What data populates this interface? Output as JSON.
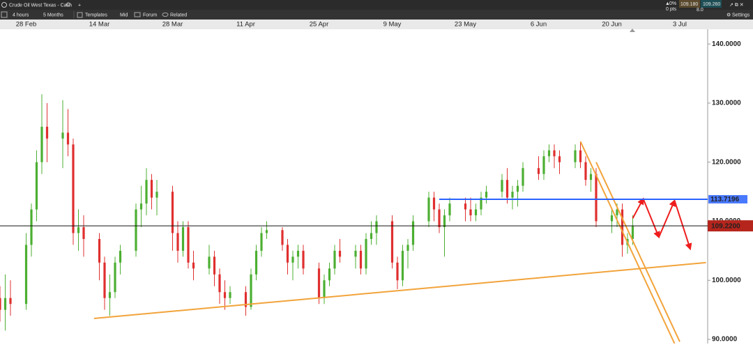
{
  "toolbar": {
    "instrument": "Crude Oil West Texas - Cash",
    "interval": "4 hours",
    "range": "5 Months",
    "templates": "Templates",
    "price_type": "Mid",
    "forum": "Forum",
    "related": "Related",
    "change_pct": "0%",
    "change_pts": "0 pts",
    "sell": "109.180",
    "spread": "8.0",
    "buy": "109.260",
    "settings": "Settings"
  },
  "chart_data": {
    "type": "candlestick",
    "x": [
      "23 Feb",
      "24 Feb",
      "25 Feb",
      "28 Feb",
      "1 Mar",
      "2 Mar",
      "3 Mar",
      "4 Mar",
      "7 Mar",
      "8 Mar",
      "9 Mar",
      "10 Mar",
      "11 Mar",
      "14 Mar",
      "15 Mar",
      "16 Mar",
      "17 Mar",
      "18 Mar",
      "21 Mar",
      "22 Mar",
      "23 Mar",
      "24 Mar",
      "25 Mar",
      "28 Mar",
      "29 Mar",
      "30 Mar",
      "31 Mar",
      "1 Apr",
      "4 Apr",
      "5 Apr",
      "6 Apr",
      "7 Apr",
      "8 Apr",
      "11 Apr",
      "12 Apr",
      "13 Apr",
      "14 Apr",
      "15 Apr",
      "18 Apr",
      "19 Apr",
      "20 Apr",
      "21 Apr",
      "22 Apr",
      "25 Apr",
      "26 Apr",
      "27 Apr",
      "28 Apr",
      "29 Apr",
      "2 May",
      "3 May",
      "4 May",
      "5 May",
      "6 May",
      "9 May",
      "10 May",
      "11 May",
      "12 May",
      "13 May",
      "16 May",
      "17 May",
      "18 May",
      "19 May",
      "20 May",
      "23 May",
      "24 May",
      "25 May",
      "26 May",
      "27 May",
      "30 May",
      "31 May",
      "1 Jun",
      "2 Jun",
      "3 Jun",
      "6 Jun",
      "7 Jun",
      "8 Jun",
      "9 Jun",
      "10 Jun",
      "13 Jun",
      "14 Jun",
      "15 Jun",
      "16 Jun",
      "17 Jun",
      "20 Jun",
      "21 Jun",
      "22 Jun",
      "23 Jun",
      "24 Jun"
    ],
    "open": [
      97,
      95,
      97,
      96,
      106,
      112,
      120,
      126,
      124,
      125,
      123,
      108,
      109,
      107,
      103,
      97,
      98,
      103,
      105,
      112,
      113,
      117,
      114,
      115,
      108,
      105,
      109,
      103,
      102,
      104,
      101,
      98,
      97,
      98,
      95.5,
      101,
      105,
      108,
      108.5,
      106,
      103,
      104,
      105,
      102,
      97,
      100,
      102,
      105,
      104,
      105,
      102,
      107,
      108,
      110,
      103,
      100,
      105,
      106,
      110,
      114,
      112,
      109,
      111,
      113,
      112,
      111,
      112,
      114,
      115,
      117,
      114,
      115,
      116,
      119,
      118,
      121,
      122,
      121,
      120,
      122,
      120,
      117,
      118,
      110,
      111,
      112,
      106,
      107
    ],
    "high": [
      99,
      101,
      100,
      108,
      113,
      122,
      131.5,
      130,
      130.5,
      129,
      124,
      112,
      111,
      108,
      104,
      101,
      104,
      106,
      113,
      116,
      119,
      118,
      117,
      116,
      110,
      110,
      110,
      105,
      106,
      105,
      102,
      100,
      99,
      99,
      102,
      106,
      109,
      110,
      109,
      107,
      105,
      106,
      106,
      103,
      101,
      103,
      106,
      107,
      106,
      106,
      108,
      110,
      111,
      111,
      104,
      106,
      107,
      111,
      115,
      115,
      113,
      112,
      114,
      114,
      114,
      113,
      115,
      116,
      118,
      119,
      116,
      117,
      120,
      121,
      122,
      123,
      123,
      122,
      123,
      123.5,
      121,
      119,
      119,
      112,
      113,
      113,
      108,
      111
    ],
    "low": [
      93,
      91.5,
      94,
      95,
      104,
      110,
      118,
      120,
      119,
      121,
      106,
      105,
      104,
      100,
      95,
      94,
      97,
      101,
      104,
      109,
      111,
      112,
      111,
      105,
      103,
      104,
      102,
      100,
      101,
      99,
      96,
      95,
      96,
      94,
      95,
      100,
      104,
      107,
      105,
      101,
      100,
      102,
      101,
      96,
      96,
      99,
      101,
      103,
      102,
      101,
      101,
      106,
      106,
      102,
      98.5,
      99,
      102,
      105,
      109,
      110,
      108,
      104,
      110,
      110,
      110,
      110,
      111,
      113,
      114,
      113,
      112,
      112.5,
      115,
      117,
      117,
      120,
      119,
      118,
      119,
      119,
      116,
      115,
      109,
      108,
      109,
      104,
      104.5,
      106
    ],
    "close": [
      95,
      97,
      96,
      106,
      112,
      120,
      126,
      124,
      125,
      123,
      108,
      109,
      107,
      103,
      97,
      98,
      103,
      105,
      112,
      113,
      117,
      114,
      115,
      108,
      105,
      109,
      103,
      102,
      104,
      101,
      98,
      97,
      98,
      95.5,
      101,
      105,
      108,
      108.5,
      106,
      103,
      104,
      105,
      102,
      97,
      100,
      102,
      105,
      104,
      105,
      102,
      107,
      108,
      110,
      103,
      100,
      105,
      106,
      110,
      114,
      112,
      109,
      111,
      113,
      112,
      111,
      112,
      114,
      115,
      117,
      114,
      115,
      116,
      119,
      118,
      121,
      122,
      121,
      120,
      122,
      120,
      117,
      118,
      110,
      111,
      112,
      106,
      107,
      109.22
    ],
    "up_color": "#4caf32",
    "down_color": "#e02f2f",
    "xticks": [
      "28 Feb",
      "14 Mar",
      "28 Mar",
      "11 Apr",
      "25 Apr",
      "9 May",
      "23 May",
      "6 Jun",
      "20 Jun",
      "3 Jul"
    ],
    "ylim": [
      89.3,
      142.5
    ],
    "yticks": [
      {
        "value": 90,
        "label": "90.0000"
      },
      {
        "value": 100,
        "label": "100.0000"
      },
      {
        "value": 110,
        "label": "110.0000"
      },
      {
        "value": 120,
        "label": "120.0000"
      },
      {
        "value": 130,
        "label": "130.0000"
      },
      {
        "value": 140,
        "label": "140.0000"
      }
    ],
    "grid": false,
    "last_price": {
      "value": 109.22,
      "label": "109.2200",
      "color": "#b5251c"
    },
    "levels": [
      {
        "x": "18 May",
        "value": 113.7196,
        "color": "#2962ff"
      }
    ],
    "trendlines": [
      {
        "x": [
          "13 Mar",
          "8 Jul"
        ],
        "y": [
          93.55,
          103.0
        ],
        "color": "#f2a33a"
      },
      {
        "x": [
          "14 Jun",
          "2 Jul"
        ],
        "y": [
          123.5,
          89.3
        ],
        "color": "#f2a33a"
      },
      {
        "x": [
          "17 Jun",
          "3 Jul"
        ],
        "y": [
          120,
          89.6
        ],
        "color": "#f2a33a"
      }
    ],
    "projection": {
      "x": [
        "24 Jun",
        "26 Jun",
        "29 Jun",
        "2 Jul",
        "5 Jul"
      ],
      "y": [
        110.5,
        113.8,
        107.3,
        113.5,
        105.3
      ],
      "color": "#ee1c1c"
    }
  }
}
